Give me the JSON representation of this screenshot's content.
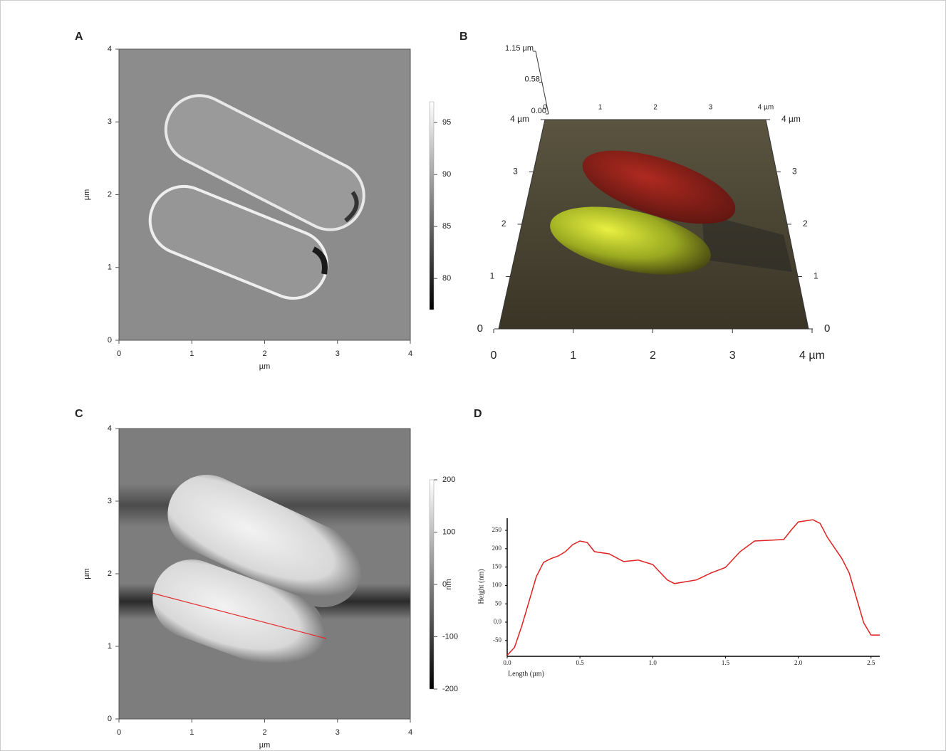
{
  "chart_data": [
    {
      "type": "image",
      "panel": "A",
      "xlabel": "µm",
      "ylabel": "µm",
      "xlim": [
        0,
        4
      ],
      "ylim": [
        0,
        4
      ],
      "xticks": [
        0,
        1,
        2,
        3,
        4
      ],
      "yticks": [
        0,
        1,
        2,
        3,
        4
      ],
      "clim": [
        77,
        97
      ],
      "cticks": [
        80,
        85,
        90,
        95
      ]
    },
    {
      "type": "surface3d",
      "panel": "B",
      "xlim": [
        0,
        4
      ],
      "ylim": [
        0,
        4
      ],
      "zlim": [
        0,
        1.15
      ],
      "xticks": [
        0,
        1,
        2,
        3,
        {
          "value": 4,
          "label": "4 µm"
        }
      ],
      "yticks": [
        0,
        1,
        2,
        3,
        {
          "value": 4,
          "label": "4 µm"
        }
      ],
      "zticks": [
        {
          "value": 0,
          "label": "0.00"
        },
        0.58,
        {
          "value": 1.15,
          "label": "1.15 µm"
        }
      ]
    },
    {
      "type": "image",
      "panel": "C",
      "xlabel": "µm",
      "ylabel": "µm",
      "xlim": [
        0,
        4
      ],
      "ylim": [
        0,
        4
      ],
      "xticks": [
        0,
        1,
        2,
        3,
        4
      ],
      "yticks": [
        0,
        1,
        2,
        3,
        4
      ],
      "clim": [
        -200,
        200
      ],
      "cticks": [
        -200,
        -100,
        0,
        100,
        200
      ],
      "clabel": "nm"
    },
    {
      "type": "line",
      "panel": "D",
      "xlabel": "Length (µm)",
      "ylabel": "Height (nm)",
      "color": "#e02020",
      "x": [
        0,
        0.05,
        0.1,
        0.15,
        0.2,
        0.25,
        0.3,
        0.35,
        0.4,
        0.45,
        0.5,
        0.55,
        0.6,
        0.7,
        0.8,
        0.9,
        1.0,
        1.1,
        1.15,
        1.3,
        1.4,
        1.5,
        1.6,
        1.7,
        1.8,
        1.9,
        1.95,
        2.0,
        2.1,
        2.15,
        2.2,
        2.3,
        2.35,
        2.4,
        2.45,
        2.5,
        2.56
      ],
      "values": [
        -90,
        -69,
        -11,
        56,
        124,
        163,
        173,
        180,
        192,
        211,
        221,
        217,
        192,
        186,
        165,
        169,
        157,
        115,
        105,
        115,
        134,
        149,
        192,
        221,
        223,
        225,
        250,
        273,
        279,
        269,
        231,
        173,
        134,
        66,
        -2,
        -35,
        -35
      ],
      "xlim": [
        0,
        2.56
      ],
      "ylim": [
        -93,
        283
      ],
      "xticks": [
        {
          "value": 0,
          "label": "0.0"
        },
        0.5,
        {
          "value": 1,
          "label": "1.0"
        },
        1.5,
        {
          "value": 2,
          "label": "2.0"
        },
        2.5
      ],
      "yticks": [
        -50,
        {
          "value": 0,
          "label": "0.0"
        },
        50,
        100,
        150,
        200,
        250
      ]
    }
  ]
}
